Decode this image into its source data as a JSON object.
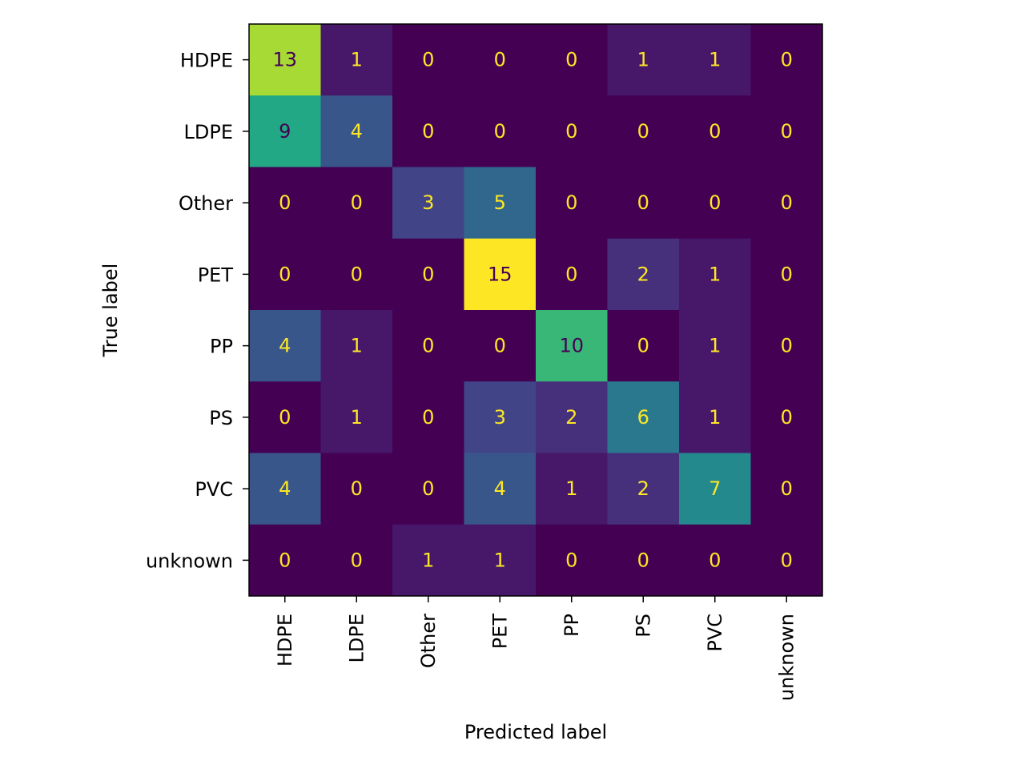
{
  "chart_data": {
    "type": "heatmap",
    "title": "",
    "xlabel": "Predicted label",
    "ylabel": "True label",
    "x_categories": [
      "HDPE",
      "LDPE",
      "Other",
      "PET",
      "PP",
      "PS",
      "PVC",
      "unknown"
    ],
    "y_categories": [
      "HDPE",
      "LDPE",
      "Other",
      "PET",
      "PP",
      "PS",
      "PVC",
      "unknown"
    ],
    "matrix": [
      [
        13,
        1,
        0,
        0,
        0,
        1,
        1,
        0
      ],
      [
        9,
        4,
        0,
        0,
        0,
        0,
        0,
        0
      ],
      [
        0,
        0,
        3,
        5,
        0,
        0,
        0,
        0
      ],
      [
        0,
        0,
        0,
        15,
        0,
        2,
        1,
        0
      ],
      [
        4,
        1,
        0,
        0,
        10,
        0,
        1,
        0
      ],
      [
        0,
        1,
        0,
        3,
        2,
        6,
        1,
        0
      ],
      [
        4,
        0,
        0,
        4,
        1,
        2,
        7,
        0
      ],
      [
        0,
        0,
        1,
        1,
        0,
        0,
        0,
        0
      ]
    ],
    "value_range": [
      0,
      15
    ],
    "colormap": "viridis",
    "text_color_dark": "#440154",
    "text_color_light": "#fde725",
    "grid": false,
    "colorbar": false
  }
}
